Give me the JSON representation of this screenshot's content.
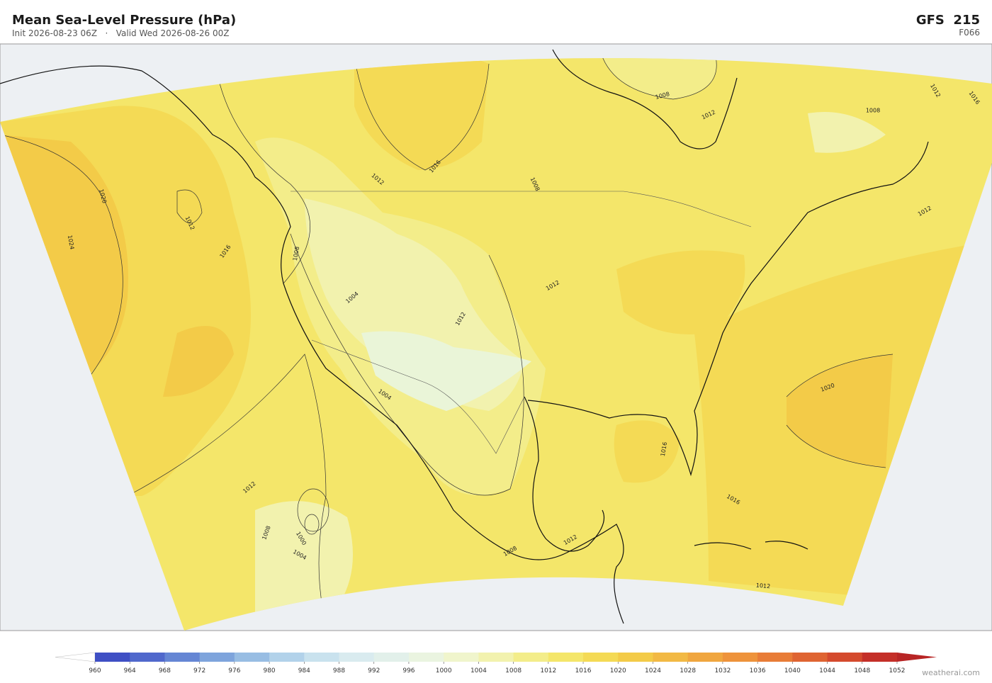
{
  "header": {
    "title": "Mean Sea-Level Pressure  (hPa)",
    "subtitle": "Init 2026-08-23 06Z   ·   Valid Wed 2026-08-26 00Z",
    "model": "GFS  215",
    "forecast_hour": "F066"
  },
  "map": {
    "contour_labels": [
      1008,
      1012,
      1008,
      1012,
      1016,
      1012,
      1016,
      1008,
      1020,
      1012,
      1024,
      1016,
      1008,
      1004,
      1012,
      1012,
      1012,
      1020,
      1004,
      1016,
      1016,
      1012,
      1008,
      1000,
      1004,
      1012,
      1008,
      1012
    ]
  },
  "colorbar": {
    "ticks": [
      960,
      964,
      968,
      972,
      976,
      980,
      984,
      988,
      992,
      996,
      1000,
      1004,
      1008,
      1012,
      1016,
      1020,
      1024,
      1028,
      1032,
      1036,
      1040,
      1044,
      1048,
      1052
    ],
    "colors": [
      "#3f4fc4",
      "#5068cc",
      "#6586d4",
      "#7ea4dc",
      "#98bde3",
      "#b2d2ea",
      "#c9e2ee",
      "#d9ebef",
      "#e2f0ea",
      "#eaf4e0",
      "#f0f5cc",
      "#f2f2ae",
      "#f3ed8a",
      "#f4e66a",
      "#f4da55",
      "#f3cb48",
      "#f2b944",
      "#f0a63f",
      "#ee933b",
      "#e87c37",
      "#df6432",
      "#d44a2d",
      "#c42f28"
    ],
    "under_color": "#ffffff",
    "over_color": "#b82525"
  },
  "footer": {
    "credit": "weatherai.com"
  }
}
